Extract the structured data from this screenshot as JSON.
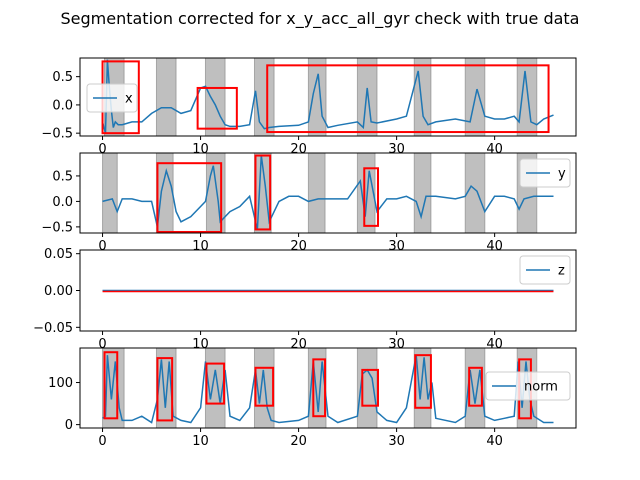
{
  "figure_title": "Segmentation corrected for x_y_acc_all_gyr check with true data",
  "colors": {
    "line": "#1f77b4",
    "segment_fill": "#808080",
    "detection_box": "#ff0000",
    "axes": "#000000"
  },
  "chart_data": [
    {
      "type": "line",
      "legend": "x",
      "legend_position": "upper-left",
      "xlim": [
        -2.3,
        48.3
      ],
      "ylim": [
        -0.55,
        0.83
      ],
      "xticks": [
        0,
        10,
        20,
        30,
        40
      ],
      "yticks": [
        -0.5,
        0.0,
        0.5
      ],
      "ytick_labels": [
        "−0.5",
        "0.0",
        "0.5"
      ],
      "series": [
        {
          "x": [
            0,
            0.3,
            0.5,
            0.7,
            0.9,
            1.1,
            1.3,
            1.6,
            2,
            3,
            4,
            5,
            6,
            7,
            8,
            9,
            10,
            10.5,
            11,
            11.5,
            12,
            12.5,
            13,
            14,
            15,
            15.6,
            16,
            16.5,
            17,
            18,
            20,
            21,
            21.5,
            22,
            22.4,
            23,
            24,
            26,
            26.6,
            27,
            27.4,
            28,
            30,
            31,
            32.2,
            32.7,
            33.2,
            34,
            36,
            37.5,
            38.2,
            39,
            40,
            41,
            42,
            42.5,
            43.1,
            43.7,
            44.3,
            45,
            46
          ],
          "y": [
            -0.3,
            -0.5,
            0.8,
            0.3,
            -0.1,
            -0.4,
            -0.3,
            -0.35,
            -0.35,
            -0.3,
            -0.3,
            -0.15,
            -0.05,
            -0.05,
            -0.15,
            -0.1,
            0.3,
            0.33,
            0.15,
            0.0,
            -0.2,
            -0.35,
            -0.38,
            -0.38,
            -0.35,
            0.25,
            -0.3,
            -0.42,
            -0.4,
            -0.38,
            -0.36,
            -0.3,
            0.2,
            0.55,
            -0.2,
            -0.4,
            -0.36,
            -0.3,
            -0.4,
            0.3,
            -0.3,
            -0.32,
            -0.25,
            -0.2,
            0.6,
            -0.2,
            -0.35,
            -0.3,
            -0.25,
            -0.3,
            0.28,
            -0.2,
            -0.25,
            -0.25,
            -0.2,
            -0.3,
            0.6,
            -0.3,
            -0.35,
            -0.25,
            -0.18
          ]
        }
      ],
      "segments": [
        [
          0.2,
          2.2
        ],
        [
          5.5,
          7.5
        ],
        [
          10.5,
          12.5
        ],
        [
          15.5,
          17.5
        ],
        [
          21,
          22.8
        ],
        [
          26,
          28
        ],
        [
          31.8,
          33.5
        ],
        [
          37,
          39
        ],
        [
          42.3,
          44.3
        ]
      ],
      "detection_boxes": [
        {
          "x0": 0,
          "x1": 3.7,
          "y0": -0.5,
          "y1": 0.77
        },
        {
          "x0": 9.7,
          "x1": 13.7,
          "y0": -0.42,
          "y1": 0.3
        },
        {
          "x0": 16.8,
          "x1": 45.5,
          "y0": -0.48,
          "y1": 0.7
        }
      ]
    },
    {
      "type": "line",
      "legend": "y",
      "legend_position": "upper-right",
      "xlim": [
        -2.3,
        48.3
      ],
      "ylim": [
        -0.62,
        0.95
      ],
      "xticks": [
        0,
        10,
        20,
        30,
        40
      ],
      "yticks": [
        -0.5,
        0.0,
        0.5
      ],
      "ytick_labels": [
        "−0.5",
        "0.0",
        "0.5"
      ],
      "series": [
        {
          "x": [
            0,
            1,
            1.5,
            2,
            3,
            4,
            5,
            5.6,
            6,
            6.5,
            7,
            7.5,
            8,
            9,
            10,
            10.5,
            11,
            11.3,
            11.8,
            12,
            13,
            14,
            15,
            15.8,
            16.2,
            16.6,
            17,
            18,
            19,
            20,
            21,
            22,
            23,
            25,
            26.3,
            26.8,
            27.2,
            28,
            29,
            30,
            31,
            32,
            32.5,
            33,
            34,
            36,
            37,
            37.6,
            38.2,
            39,
            40,
            41,
            42,
            42.5,
            43,
            44,
            45,
            46
          ],
          "y": [
            0.0,
            0.05,
            -0.2,
            0.05,
            0.05,
            0.0,
            0.0,
            -0.5,
            0.2,
            0.6,
            0.3,
            -0.2,
            -0.4,
            -0.3,
            -0.1,
            0.0,
            0.5,
            0.7,
            0.0,
            -0.4,
            -0.2,
            -0.1,
            0.1,
            -0.55,
            0.9,
            0.3,
            -0.4,
            0.0,
            0.1,
            0.1,
            0.0,
            0.05,
            0.05,
            0.05,
            0.4,
            -0.3,
            0.6,
            -0.2,
            0.05,
            0.05,
            0.1,
            0.0,
            -0.3,
            0.1,
            0.1,
            0.05,
            0.1,
            0.3,
            0.2,
            -0.2,
            0.1,
            0.1,
            0.05,
            -0.15,
            0.05,
            0.1,
            0.1,
            0.1
          ]
        }
      ],
      "segments": [
        [
          0,
          1.5
        ],
        [
          5.5,
          7.2
        ],
        [
          10.6,
          12.5
        ],
        [
          15.5,
          17.2
        ],
        [
          21,
          22.7
        ],
        [
          26,
          27.8
        ],
        [
          31.8,
          33.5
        ],
        [
          37,
          39
        ],
        [
          42.3,
          44.3
        ]
      ],
      "detection_boxes": [
        {
          "x0": 5.6,
          "x1": 12.1,
          "y0": -0.6,
          "y1": 0.75
        },
        {
          "x0": 15.6,
          "x1": 17.1,
          "y0": -0.55,
          "y1": 0.9
        },
        {
          "x0": 26.7,
          "x1": 28.1,
          "y0": -0.48,
          "y1": 0.65
        }
      ]
    },
    {
      "type": "line",
      "legend": "z",
      "legend_position": "upper-right",
      "xlim": [
        -2.3,
        48.3
      ],
      "ylim": [
        -0.055,
        0.055
      ],
      "xticks": [
        0,
        10,
        20,
        30,
        40
      ],
      "yticks": [
        -0.05,
        0.0,
        0.05
      ],
      "ytick_labels": [
        "−0.05",
        "0.00",
        "0.05"
      ],
      "series": [
        {
          "x": [
            0,
            46
          ],
          "y": [
            0,
            0
          ]
        }
      ],
      "segments": [],
      "detection_boxes": []
    },
    {
      "type": "line",
      "legend": "norm",
      "legend_position": "center-right",
      "xlim": [
        -2.3,
        48.3
      ],
      "ylim": [
        -8,
        182
      ],
      "xticks": [
        0,
        10,
        20,
        30,
        40
      ],
      "yticks": [
        0,
        100
      ],
      "ytick_labels": [
        "0",
        "100"
      ],
      "series": [
        {
          "x": [
            0,
            0.3,
            0.5,
            0.9,
            1.3,
            1.7,
            2,
            3,
            4,
            5,
            5.6,
            6,
            6.4,
            6.8,
            7.2,
            8,
            9,
            10,
            10.5,
            11,
            11.5,
            12,
            12.5,
            13,
            14,
            15,
            15.6,
            16,
            16.4,
            16.8,
            17.2,
            18,
            20,
            21,
            21.5,
            22,
            22.4,
            23,
            24,
            26,
            26.5,
            27,
            27.5,
            28,
            29,
            30,
            31,
            32,
            32.4,
            32.8,
            33.2,
            33.6,
            34,
            36,
            37,
            37.5,
            38,
            38.5,
            39,
            40,
            41,
            42,
            42.4,
            42.8,
            43.2,
            43.6,
            44,
            45,
            46
          ],
          "y": [
            15,
            20,
            165,
            60,
            150,
            40,
            10,
            10,
            20,
            5,
            60,
            155,
            40,
            150,
            20,
            10,
            5,
            40,
            150,
            60,
            130,
            50,
            130,
            20,
            10,
            40,
            130,
            50,
            130,
            40,
            10,
            5,
            10,
            20,
            150,
            30,
            150,
            20,
            5,
            20,
            120,
            130,
            110,
            30,
            10,
            5,
            40,
            165,
            60,
            160,
            60,
            100,
            15,
            5,
            20,
            130,
            50,
            130,
            20,
            10,
            15,
            20,
            150,
            40,
            150,
            60,
            20,
            5,
            5
          ]
        }
      ],
      "segments": [
        [
          0,
          2.2
        ],
        [
          5.5,
          7.5
        ],
        [
          10.5,
          12.5
        ],
        [
          15.5,
          17.5
        ],
        [
          21,
          22.8
        ],
        [
          26,
          28
        ],
        [
          31.8,
          33.5
        ],
        [
          37,
          39
        ],
        [
          42.3,
          44.3
        ]
      ],
      "detection_boxes": [
        {
          "x0": 0.2,
          "x1": 1.5,
          "y0": 15,
          "y1": 172
        },
        {
          "x0": 5.6,
          "x1": 7.1,
          "y0": 10,
          "y1": 158
        },
        {
          "x0": 10.6,
          "x1": 12.4,
          "y0": 50,
          "y1": 145
        },
        {
          "x0": 15.6,
          "x1": 17.4,
          "y0": 45,
          "y1": 135
        },
        {
          "x0": 21.5,
          "x1": 22.7,
          "y0": 20,
          "y1": 155
        },
        {
          "x0": 26.5,
          "x1": 28.1,
          "y0": 45,
          "y1": 130
        },
        {
          "x0": 31.9,
          "x1": 33.5,
          "y0": 40,
          "y1": 165
        },
        {
          "x0": 37.4,
          "x1": 38.7,
          "y0": 45,
          "y1": 135
        },
        {
          "x0": 42.5,
          "x1": 43.7,
          "y0": 15,
          "y1": 155
        }
      ]
    }
  ]
}
